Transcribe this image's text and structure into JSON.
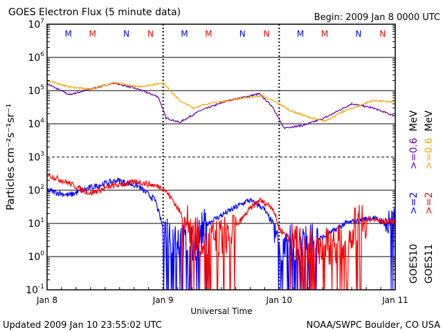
{
  "chart_data": {
    "type": "line",
    "title": "GOES Electron Flux (5 minute data)",
    "begin_label": "Begin: 2009 Jan 8 0000 UTC",
    "xlabel": "Universal Time",
    "ylabel": "Particles cm⁻²s⁻¹sr⁻¹",
    "x_unit": "hours since 2009 Jan 8 0000 UTC",
    "xlim": [
      0,
      72
    ],
    "ylim": [
      0.1,
      10000000
    ],
    "yscale": "log",
    "x_ticks": [
      {
        "h": 0,
        "label": "Jan 8"
      },
      {
        "h": 24,
        "label": "Jan 9"
      },
      {
        "h": 48,
        "label": "Jan 10"
      },
      {
        "h": 72,
        "label": "Jan 11"
      }
    ],
    "y_ticks": [
      {
        "exp": "7"
      },
      {
        "exp": "6"
      },
      {
        "exp": "5"
      },
      {
        "exp": "4"
      },
      {
        "exp": "3"
      },
      {
        "exp": "2"
      },
      {
        "exp": "1"
      },
      {
        "exp": "0"
      },
      {
        "exp": "-1"
      }
    ],
    "markers": [
      {
        "h": 4.4,
        "label": "M",
        "color": "#0000ff"
      },
      {
        "h": 9.4,
        "label": "M",
        "color": "#ff0000"
      },
      {
        "h": 16.4,
        "label": "N",
        "color": "#0000ff"
      },
      {
        "h": 21.4,
        "label": "N",
        "color": "#ff0000"
      },
      {
        "h": 28.4,
        "label": "M",
        "color": "#0000ff"
      },
      {
        "h": 33.4,
        "label": "M",
        "color": "#ff0000"
      },
      {
        "h": 40.4,
        "label": "N",
        "color": "#0000ff"
      },
      {
        "h": 45.4,
        "label": "N",
        "color": "#ff0000"
      },
      {
        "h": 52.4,
        "label": "M",
        "color": "#0000ff"
      },
      {
        "h": 57.4,
        "label": "M",
        "color": "#ff0000"
      },
      {
        "h": 64.4,
        "label": "N",
        "color": "#0000ff"
      },
      {
        "h": 69.4,
        "label": "N",
        "color": "#ff0000"
      }
    ],
    "series": [
      {
        "name": "GOES10 >=0.6 MeV",
        "color": "#6600aa",
        "noisy": [],
        "x": [
          0,
          4.6,
          8.9,
          13.9,
          18.9,
          23,
          24.6,
          27.4,
          31.7,
          37.4,
          43.9,
          46.7,
          48.9,
          53,
          57.4,
          63,
          67.4,
          72
        ],
        "y": [
          160000,
          75000,
          110000,
          170000,
          110000,
          65000,
          15000,
          11000,
          25000,
          50000,
          80000,
          32000,
          7500,
          9000,
          15000,
          40000,
          30000,
          17000
        ]
      },
      {
        "name": "GOES11 >=0.6 MeV",
        "color": "#ffa500",
        "noisy": [],
        "x": [
          0,
          4.6,
          8.9,
          13.9,
          18.9,
          24,
          27.4,
          30.3,
          33.1,
          38.9,
          44.6,
          48,
          50.3,
          54.6,
          57.4,
          61.7,
          67.4,
          72
        ],
        "y": [
          200000,
          130000,
          110000,
          170000,
          130000,
          170000,
          50000,
          30000,
          40000,
          55000,
          70000,
          40000,
          25000,
          15000,
          12000,
          25000,
          50000,
          45000
        ]
      },
      {
        "name": "GOES10 >=2 MeV",
        "color": "#0000ff",
        "noisy": [
          [
            24,
            33
          ],
          [
            47,
            56
          ],
          [
            70,
            72
          ]
        ],
        "x": [
          0,
          4.6,
          8.9,
          14.6,
          18.9,
          22.4,
          24,
          30,
          33.1,
          38.9,
          41.7,
          44.6,
          46.7,
          48,
          52,
          57.4,
          61.7,
          67.4,
          72
        ],
        "y": [
          100,
          70,
          120,
          200,
          130,
          50,
          7,
          2,
          10,
          30,
          50,
          30,
          10,
          3,
          2,
          4,
          10,
          15,
          7
        ]
      },
      {
        "name": "GOES11 >=2 MeV",
        "color": "#ff0000",
        "noisy": [
          [
            28,
            39
          ],
          [
            50,
            66
          ]
        ],
        "x": [
          0,
          4.6,
          8.9,
          13.1,
          18.9,
          24,
          26,
          28.9,
          33,
          38,
          41.7,
          43.9,
          46.7,
          48,
          52,
          57,
          62,
          64.6,
          72
        ],
        "y": [
          300,
          160,
          80,
          130,
          180,
          120,
          50,
          10,
          3,
          5,
          25,
          50,
          30,
          7,
          2,
          2,
          3,
          14,
          11
        ]
      }
    ],
    "legend": [
      {
        "label": "GOES10",
        "color": "#000000"
      },
      {
        "label": "GOES11",
        "color": "#000000"
      },
      {
        "label": ">=2",
        "color": "#0000ff"
      },
      {
        "label": ">=2",
        "color": "#ff0000"
      },
      {
        "label": ">=0.6",
        "color": "#6600aa"
      },
      {
        "label": ">=0.6",
        "color": "#ffa500"
      },
      {
        "label": "MeV",
        "color": "#000000"
      },
      {
        "label": "MeV",
        "color": "#000000"
      }
    ]
  },
  "footer": {
    "updated": "Updated 2009 Jan 10 23:55:02 UTC",
    "credit": "NOAA/SWPC Boulder, CO USA"
  }
}
